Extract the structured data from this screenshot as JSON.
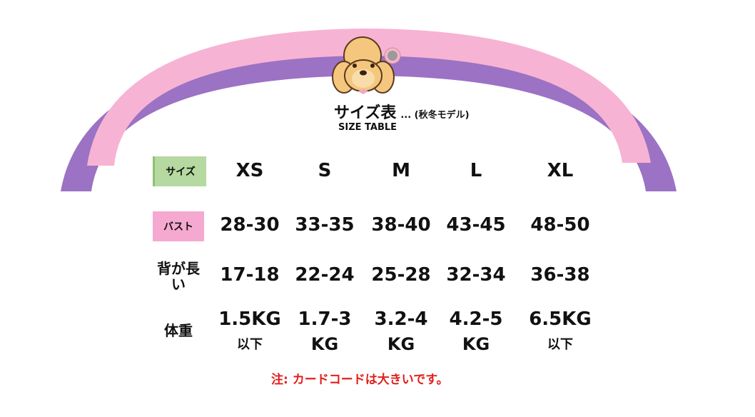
{
  "header": {
    "title": "サイズ表",
    "title_suffix": "... (秋冬モデル)",
    "subtitle": "SIZE TABLE",
    "mascot_icon": "poodle-mascot-icon"
  },
  "colors": {
    "arch_pink": "#f7b3d3",
    "arch_purple": "#9b72c4",
    "size_label_bg": "#b5d9a0",
    "bust_label_bg": "#f5a9d0",
    "note": "#e0201c"
  },
  "table": {
    "rows": [
      {
        "label": "サイズ",
        "values": [
          "XS",
          "S",
          "M",
          "L",
          "XL"
        ]
      },
      {
        "label": "バスト",
        "values": [
          "28-30",
          "33-35",
          "38-40",
          "43-45",
          "48-50"
        ]
      },
      {
        "label": "背が長い",
        "values": [
          "17-18",
          "22-24",
          "25-28",
          "32-34",
          "36-38"
        ]
      },
      {
        "label": "体重",
        "values": [
          {
            "line1": "1.5KG",
            "line2": "以下"
          },
          {
            "line1": "1.7-3",
            "line2": "KG"
          },
          {
            "line1": "3.2-4",
            "line2": "KG"
          },
          {
            "line1": "4.2-5",
            "line2": "KG"
          },
          {
            "line1": "6.5KG",
            "line2": "以下"
          }
        ]
      }
    ]
  },
  "note": "注: カードコードは大きいです。"
}
